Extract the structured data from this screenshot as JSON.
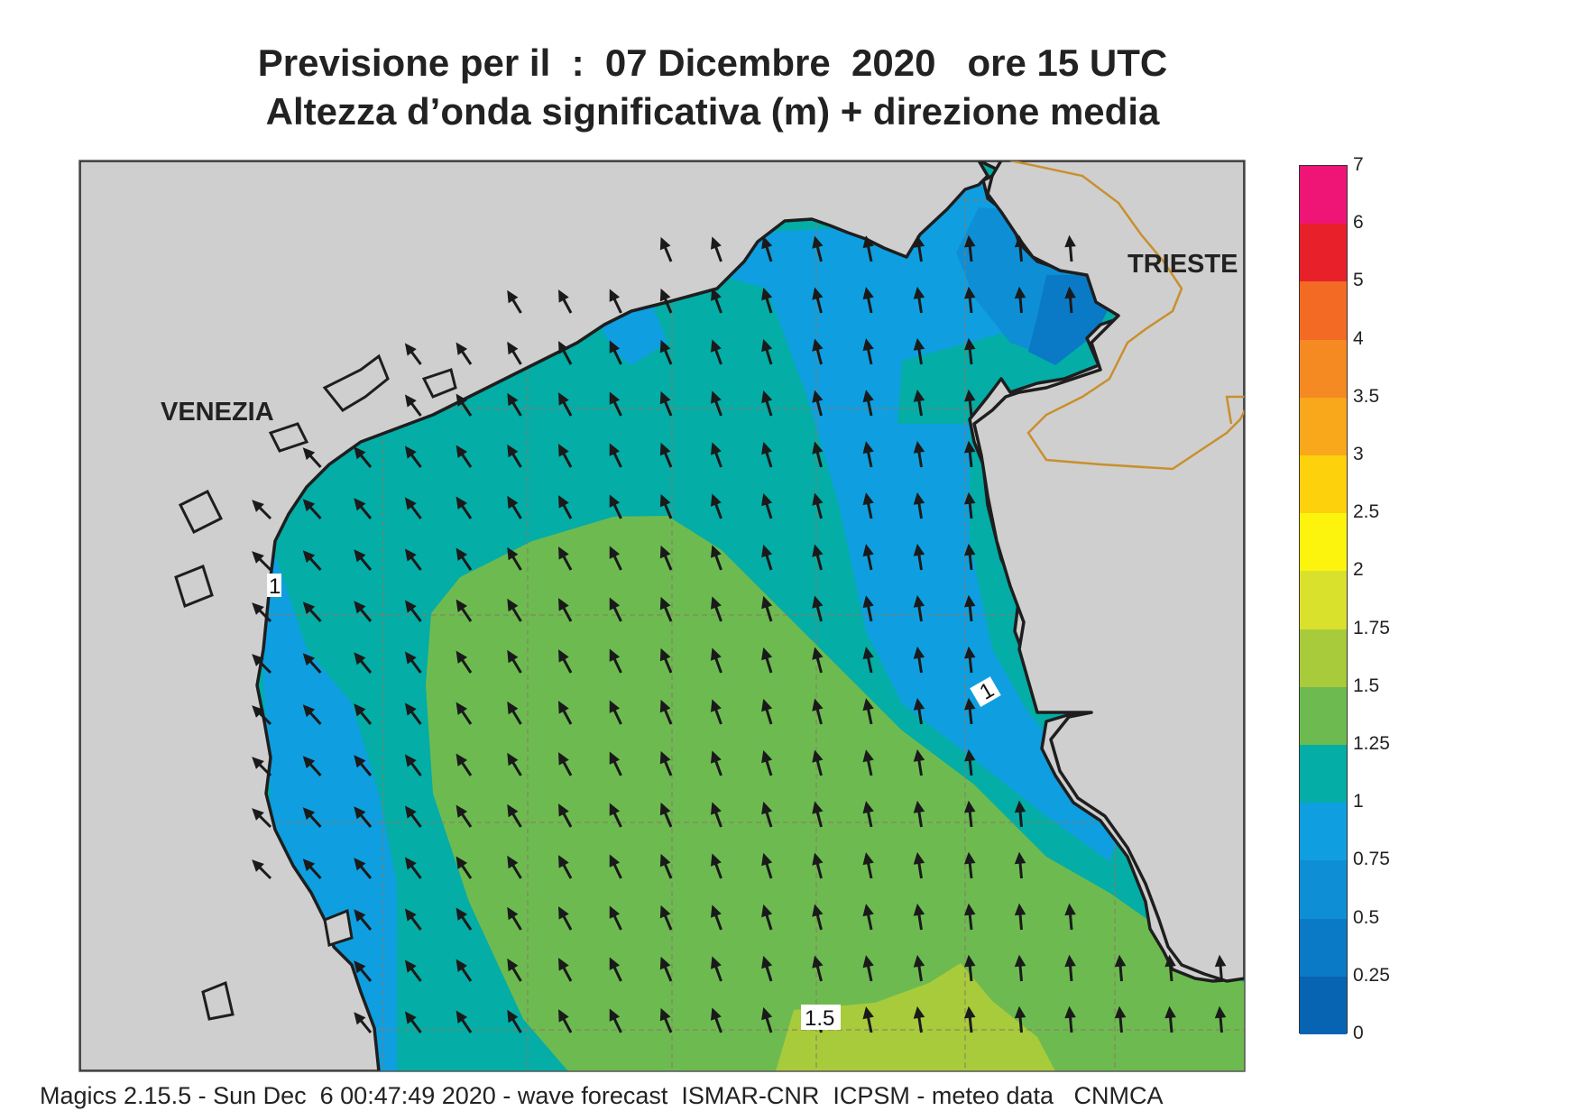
{
  "title": {
    "line1": "Previsione per il  :  07 Dicembre  2020   ore 15 UTC",
    "line2": "Altezza d’onda significativa (m) + direzione media"
  },
  "map": {
    "cities": [
      {
        "name": "VENEZIA"
      },
      {
        "name": "TRIESTE"
      }
    ],
    "contour_labels": [
      "1",
      "1",
      "1.5"
    ],
    "land_color": "#cfcfcf",
    "coast_color": "#1e1e1e",
    "border_color": "#c8902e",
    "arrow_color": "#1a1a1a"
  },
  "colorbar": {
    "ticks": [
      "7",
      "6",
      "5",
      "4",
      "3.5",
      "3",
      "2.5",
      "2",
      "1.75",
      "1.5",
      "1.25",
      "1",
      "0.75",
      "0.5",
      "0.25",
      "0"
    ],
    "bands": [
      {
        "from": "6",
        "to": "7",
        "color": "#ee1577"
      },
      {
        "from": "5",
        "to": "6",
        "color": "#e8202a"
      },
      {
        "from": "4",
        "to": "5",
        "color": "#f26a24"
      },
      {
        "from": "3.5",
        "to": "4",
        "color": "#f68a22"
      },
      {
        "from": "3",
        "to": "3.5",
        "color": "#f9a81b"
      },
      {
        "from": "2.5",
        "to": "3",
        "color": "#fdd10c"
      },
      {
        "from": "2",
        "to": "2.5",
        "color": "#fdf40e"
      },
      {
        "from": "1.75",
        "to": "2",
        "color": "#d9e12d"
      },
      {
        "from": "1.5",
        "to": "1.75",
        "color": "#a8cb3c"
      },
      {
        "from": "1.25",
        "to": "1.5",
        "color": "#6dbb50"
      },
      {
        "from": "1",
        "to": "1.25",
        "color": "#04ada6"
      },
      {
        "from": "0.75",
        "to": "1",
        "color": "#0f9fe0"
      },
      {
        "from": "0.5",
        "to": "0.75",
        "color": "#0e8fd5"
      },
      {
        "from": "0.25",
        "to": "0.5",
        "color": "#0a7ac6"
      },
      {
        "from": "0",
        "to": "0.25",
        "color": "#0764b3"
      }
    ]
  },
  "footer": "Magics 2.15.5 - Sun Dec  6 00:47:49 2020 - wave forecast  ISMAR-CNR  ICPSM - meteo data   CNMCA"
}
